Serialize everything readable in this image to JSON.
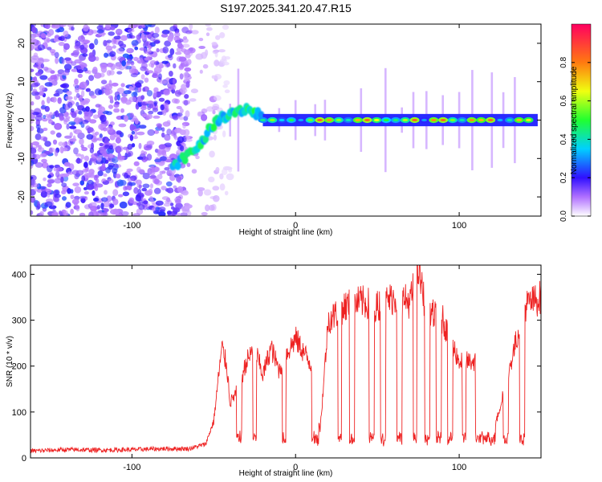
{
  "title": "S197.2025.341.20.47.R15",
  "chart_data": [
    {
      "type": "heatmap",
      "name": "spectrogram",
      "xlabel": "Height of straight line (km)",
      "ylabel": "Frequency (Hz)",
      "xlim": [
        -162,
        150
      ],
      "ylim": [
        -25,
        25
      ],
      "xticks": [
        -100,
        0,
        100
      ],
      "yticks": [
        -20,
        -10,
        0,
        10,
        20
      ],
      "colorbar": {
        "label": "Normalized spectral amplitude",
        "range": [
          0.0,
          1.0
        ],
        "ticks": [
          0.0,
          0.2,
          0.4,
          0.6,
          0.8
        ],
        "tick_labels": [
          "0.0",
          "0.2",
          "0.4",
          "0.6",
          "0.8"
        ]
      },
      "features": [
        {
          "name": "noise region",
          "x_range": [
            -162,
            -65
          ],
          "freq_range": [
            -25,
            25
          ],
          "amplitude": 0.2
        },
        {
          "name": "rising trace",
          "x": [
            -75,
            -60,
            -50,
            -40,
            -30,
            -20
          ],
          "freq": [
            -12,
            -7,
            -1,
            2,
            3,
            1
          ],
          "amplitude": 0.3
        },
        {
          "name": "zero-frequency line",
          "x_range": [
            -20,
            148
          ],
          "freq": 0,
          "amplitude": 0.6
        }
      ]
    },
    {
      "type": "line",
      "name": "snr",
      "xlabel": "Height of straight line (km)",
      "ylabel": "SNR (10 * v/v)",
      "xlim": [
        -162,
        150
      ],
      "ylim": [
        0,
        420
      ],
      "xticks": [
        -100,
        0,
        100
      ],
      "yticks": [
        0,
        100,
        200,
        300,
        400
      ],
      "color": "#ee2222",
      "series": {
        "x": [
          -162,
          -140,
          -120,
          -100,
          -80,
          -65,
          -55,
          -50,
          -47,
          -45,
          -42,
          -40,
          -35,
          -30,
          -25,
          -20,
          -15,
          -10,
          -5,
          0,
          5,
          10,
          15,
          20,
          30,
          40,
          50,
          60,
          70,
          75,
          80,
          90,
          100,
          110,
          120,
          140,
          150
        ],
        "y": [
          15,
          18,
          17,
          18,
          20,
          20,
          30,
          80,
          180,
          240,
          200,
          120,
          150,
          210,
          240,
          180,
          240,
          190,
          230,
          260,
          230,
          200,
          60,
          300,
          330,
          340,
          330,
          350,
          340,
          410,
          320,
          300,
          210,
          210,
          40,
          330,
          350
        ]
      }
    }
  ]
}
